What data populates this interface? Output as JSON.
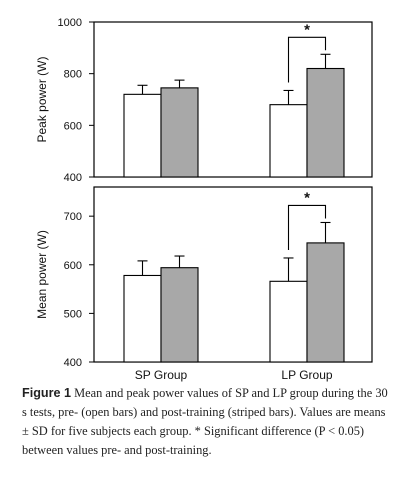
{
  "chart_data": [
    {
      "type": "bar",
      "ylabel": "Peak power (W)",
      "ylim": [
        400,
        1000
      ],
      "yticks": [
        400,
        600,
        800,
        1000
      ],
      "categories": [
        "SP Group",
        "LP Group"
      ],
      "series": [
        {
          "values": [
            720,
            680
          ],
          "sd": [
            35,
            55
          ]
        },
        {
          "values": [
            745,
            820
          ],
          "sd": [
            30,
            55
          ]
        }
      ],
      "annotations": [
        {
          "text": "*",
          "group": "LP Group"
        }
      ]
    },
    {
      "type": "bar",
      "ylabel": "Mean power (W)",
      "ylim": [
        400,
        760
      ],
      "yticks": [
        400,
        500,
        600,
        700
      ],
      "categories": [
        "SP Group",
        "LP Group"
      ],
      "series": [
        {
          "values": [
            578,
            566
          ],
          "sd": [
            30,
            48
          ]
        },
        {
          "values": [
            594,
            645
          ],
          "sd": [
            24,
            42
          ]
        }
      ],
      "annotations": [
        {
          "text": "*",
          "group": "LP Group"
        }
      ]
    }
  ],
  "colors": {
    "open_bar": "#ffffff",
    "filled_bar": "#a8a8a8",
    "frame": "#000000"
  },
  "caption": {
    "label": "Figure 1",
    "text": "Mean and peak power values of SP and LP group during the 30 s tests, pre- (open bars) and post-training (striped bars). Values are means ± SD for five subjects each group. * Significant difference (P < 0.05) between values pre- and post-training."
  }
}
